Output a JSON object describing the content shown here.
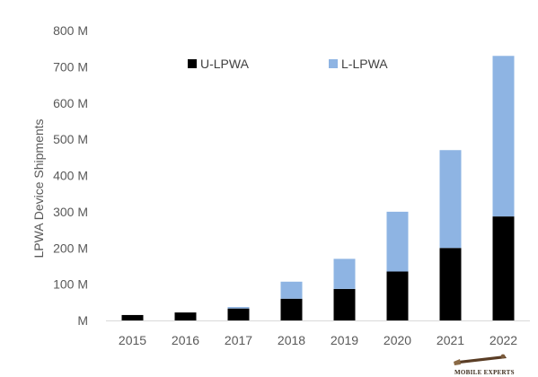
{
  "chart_data": {
    "type": "bar",
    "stacked": true,
    "categories": [
      "2015",
      "2016",
      "2017",
      "2018",
      "2019",
      "2020",
      "2021",
      "2022"
    ],
    "series": [
      {
        "name": "U-LPWA",
        "color": "#000000",
        "values": [
          15,
          22,
          33,
          60,
          87,
          135,
          200,
          287
        ]
      },
      {
        "name": "L-LPWA",
        "color": "#8eb4e3",
        "values": [
          0,
          0,
          4,
          47,
          83,
          165,
          270,
          443
        ]
      }
    ],
    "ylabel": "LPWA Device Shipments",
    "xlabel": "",
    "title": "",
    "ylim": [
      0,
      800
    ],
    "yticks": [
      {
        "value": 0,
        "label": "M"
      },
      {
        "value": 100,
        "label": "100 M"
      },
      {
        "value": 200,
        "label": "200 M"
      },
      {
        "value": 300,
        "label": "300 M"
      },
      {
        "value": 400,
        "label": "400 M"
      },
      {
        "value": 500,
        "label": "500 M"
      },
      {
        "value": 600,
        "label": "600 M"
      },
      {
        "value": 700,
        "label": "700 M"
      },
      {
        "value": 800,
        "label": "800 M"
      }
    ],
    "grid": false,
    "legend_position": "top-center"
  },
  "watermark": {
    "text": "MOBILE EXPERTS"
  }
}
